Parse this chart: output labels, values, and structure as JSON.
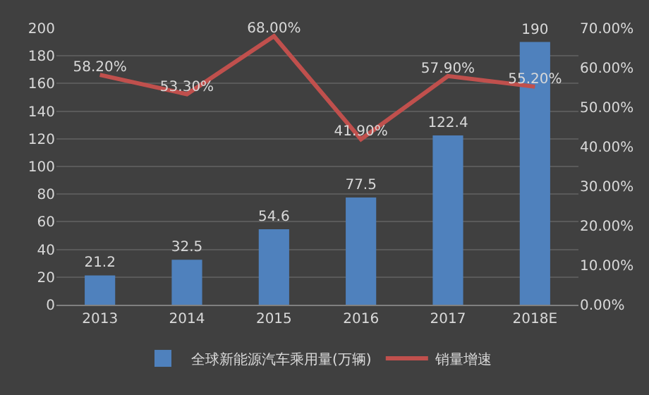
{
  "chart_data": {
    "type": "bar",
    "categories": [
      "2013",
      "2014",
      "2015",
      "2016",
      "2017",
      "2018E"
    ],
    "series": [
      {
        "name": "全球新能源汽车乘用量(万辆)",
        "color": "#4f81bd",
        "values": [
          21.2,
          32.5,
          54.6,
          77.5,
          122.4,
          190
        ],
        "value_labels": [
          "21.2",
          "32.5",
          "54.6",
          "77.5",
          "122.4",
          "190"
        ]
      },
      {
        "name": "销量增速",
        "type": "line",
        "axis": "y2",
        "color": "#c0504d",
        "values": [
          58.2,
          53.3,
          68.0,
          41.9,
          57.9,
          55.2
        ],
        "value_labels": [
          "58.20%",
          "53.30%",
          "68.00%",
          "41.90%",
          "57.90%",
          "55.20%"
        ]
      }
    ],
    "ylim": [
      0,
      200
    ],
    "yticks": [
      0,
      20,
      40,
      60,
      80,
      100,
      120,
      140,
      160,
      180,
      200
    ],
    "y2lim": [
      0,
      70
    ],
    "y2ticks": [
      {
        "value": 0,
        "label": "0.00%"
      },
      {
        "value": 10,
        "label": "10.00%"
      },
      {
        "value": 20,
        "label": "20.00%"
      },
      {
        "value": 30,
        "label": "30.00%"
      },
      {
        "value": 40,
        "label": "40.00%"
      },
      {
        "value": 50,
        "label": "50.00%"
      },
      {
        "value": 60,
        "label": "60.00%"
      },
      {
        "value": 70,
        "label": "70.00%"
      }
    ],
    "grid": "y",
    "legend": "bottom",
    "marker": "none",
    "line_style": "solid"
  }
}
